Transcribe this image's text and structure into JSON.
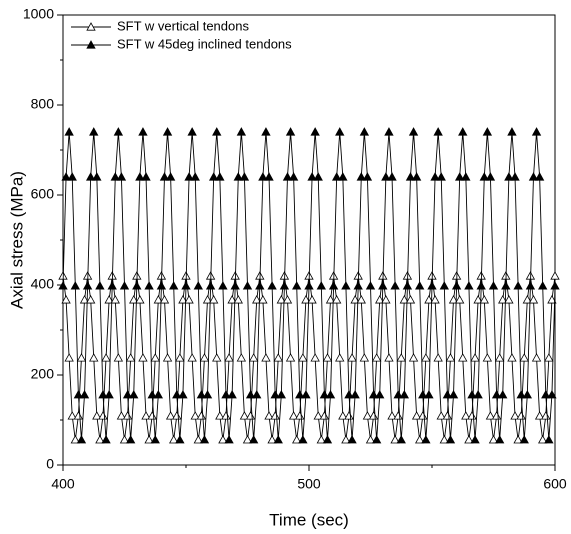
{
  "chart_data": {
    "type": "line",
    "x_label": "Time (sec)",
    "y_label": "Axial stress (MPa)",
    "xlim": [
      400,
      600
    ],
    "xticks": [
      400,
      500,
      600
    ],
    "xminor": [
      450,
      550
    ],
    "ylim": [
      0,
      1000
    ],
    "yticks": [
      0,
      200,
      400,
      600,
      800,
      1000
    ],
    "yminor": [
      100,
      300,
      500,
      700,
      900
    ],
    "legend": "upper left",
    "x": [
      400,
      401.25,
      402.5,
      403.75,
      405,
      406.25,
      407.5,
      408.75,
      410,
      411.25,
      412.5,
      413.75,
      415,
      416.25,
      417.5,
      418.75,
      420,
      421.25,
      422.5,
      423.75,
      425,
      426.25,
      427.5,
      428.75,
      430,
      431.25,
      432.5,
      433.75,
      435,
      436.25,
      437.5,
      438.75,
      440,
      441.25,
      442.5,
      443.75,
      445,
      446.25,
      447.5,
      448.75,
      450,
      451.25,
      452.5,
      453.75,
      455,
      456.25,
      457.5,
      458.75,
      460,
      461.25,
      462.5,
      463.75,
      465,
      466.25,
      467.5,
      468.75,
      470,
      471.25,
      472.5,
      473.75,
      475,
      476.25,
      477.5,
      478.75,
      480,
      481.25,
      482.5,
      483.75,
      485,
      486.25,
      487.5,
      488.75,
      490,
      491.25,
      492.5,
      493.75,
      495,
      496.25,
      497.5,
      498.75,
      500,
      501.25,
      502.5,
      503.75,
      505,
      506.25,
      507.5,
      508.75,
      510,
      511.25,
      512.5,
      513.75,
      515,
      516.25,
      517.5,
      518.75,
      520,
      521.25,
      522.5,
      523.75,
      525,
      526.25,
      527.5,
      528.75,
      530,
      531.25,
      532.5,
      533.75,
      535,
      536.25,
      537.5,
      538.75,
      540,
      541.25,
      542.5,
      543.75,
      545,
      546.25,
      547.5,
      548.75,
      550,
      551.25,
      552.5,
      553.75,
      555,
      556.25,
      557.5,
      558.75,
      560,
      561.25,
      562.5,
      563.75,
      565,
      566.25,
      567.5,
      568.75,
      570,
      571.25,
      572.5,
      573.75,
      575,
      576.25,
      577.5,
      578.75,
      580,
      581.25,
      582.5,
      583.75,
      585,
      586.25,
      587.5,
      588.75,
      590,
      591.25,
      592.5,
      593.75,
      595,
      596.25,
      597.5,
      598.75,
      600
    ],
    "series": [
      {
        "name": "SFT w vertical tendons",
        "color": "#000000",
        "marker": "open-triangle",
        "values": [
          420,
          367,
          238,
          109,
          56,
          109,
          238,
          367,
          420,
          367,
          238,
          109,
          56,
          109,
          238,
          367,
          420,
          367,
          238,
          109,
          56,
          109,
          238,
          367,
          420,
          367,
          238,
          109,
          56,
          109,
          238,
          367,
          420,
          367,
          238,
          109,
          56,
          109,
          238,
          367,
          420,
          367,
          238,
          109,
          56,
          109,
          238,
          367,
          420,
          367,
          238,
          109,
          56,
          109,
          238,
          367,
          420,
          367,
          238,
          109,
          56,
          109,
          238,
          367,
          420,
          367,
          238,
          109,
          56,
          109,
          238,
          367,
          420,
          367,
          238,
          109,
          56,
          109,
          238,
          367,
          420,
          367,
          238,
          109,
          56,
          109,
          238,
          367,
          420,
          367,
          238,
          109,
          56,
          109,
          238,
          367,
          420,
          367,
          238,
          109,
          56,
          109,
          238,
          367,
          420,
          367,
          238,
          109,
          56,
          109,
          238,
          367,
          420,
          367,
          238,
          109,
          56,
          109,
          238,
          367,
          420,
          367,
          238,
          109,
          56,
          109,
          238,
          367,
          420,
          367,
          238,
          109,
          56,
          109,
          238,
          367,
          420,
          367,
          238,
          109,
          56,
          109,
          238,
          367,
          420,
          367,
          238,
          109,
          56,
          109,
          238,
          367,
          420,
          367,
          238,
          109,
          56,
          109,
          238,
          367,
          420
        ]
      },
      {
        "name": "SFT w 45deg inclined tendons",
        "color": "#000000",
        "marker": "triangle",
        "values": [
          398,
          640,
          740,
          640,
          398,
          156,
          56,
          156,
          398,
          640,
          740,
          640,
          398,
          156,
          56,
          156,
          398,
          640,
          740,
          640,
          398,
          156,
          56,
          156,
          398,
          640,
          740,
          640,
          398,
          156,
          56,
          156,
          398,
          640,
          740,
          640,
          398,
          156,
          56,
          156,
          398,
          640,
          740,
          640,
          398,
          156,
          56,
          156,
          398,
          640,
          740,
          640,
          398,
          156,
          56,
          156,
          398,
          640,
          740,
          640,
          398,
          156,
          56,
          156,
          398,
          640,
          740,
          640,
          398,
          156,
          56,
          156,
          398,
          640,
          740,
          640,
          398,
          156,
          56,
          156,
          398,
          640,
          740,
          640,
          398,
          156,
          56,
          156,
          398,
          640,
          740,
          640,
          398,
          156,
          56,
          156,
          398,
          640,
          740,
          640,
          398,
          156,
          56,
          156,
          398,
          640,
          740,
          640,
          398,
          156,
          56,
          156,
          398,
          640,
          740,
          640,
          398,
          156,
          56,
          156,
          398,
          640,
          740,
          640,
          398,
          156,
          56,
          156,
          398,
          640,
          740,
          640,
          398,
          156,
          56,
          156,
          398,
          640,
          740,
          640,
          398,
          156,
          56,
          156,
          398,
          640,
          740,
          640,
          398,
          156,
          56,
          156,
          398,
          640,
          740,
          640,
          398,
          156,
          56,
          156,
          398
        ]
      }
    ]
  }
}
